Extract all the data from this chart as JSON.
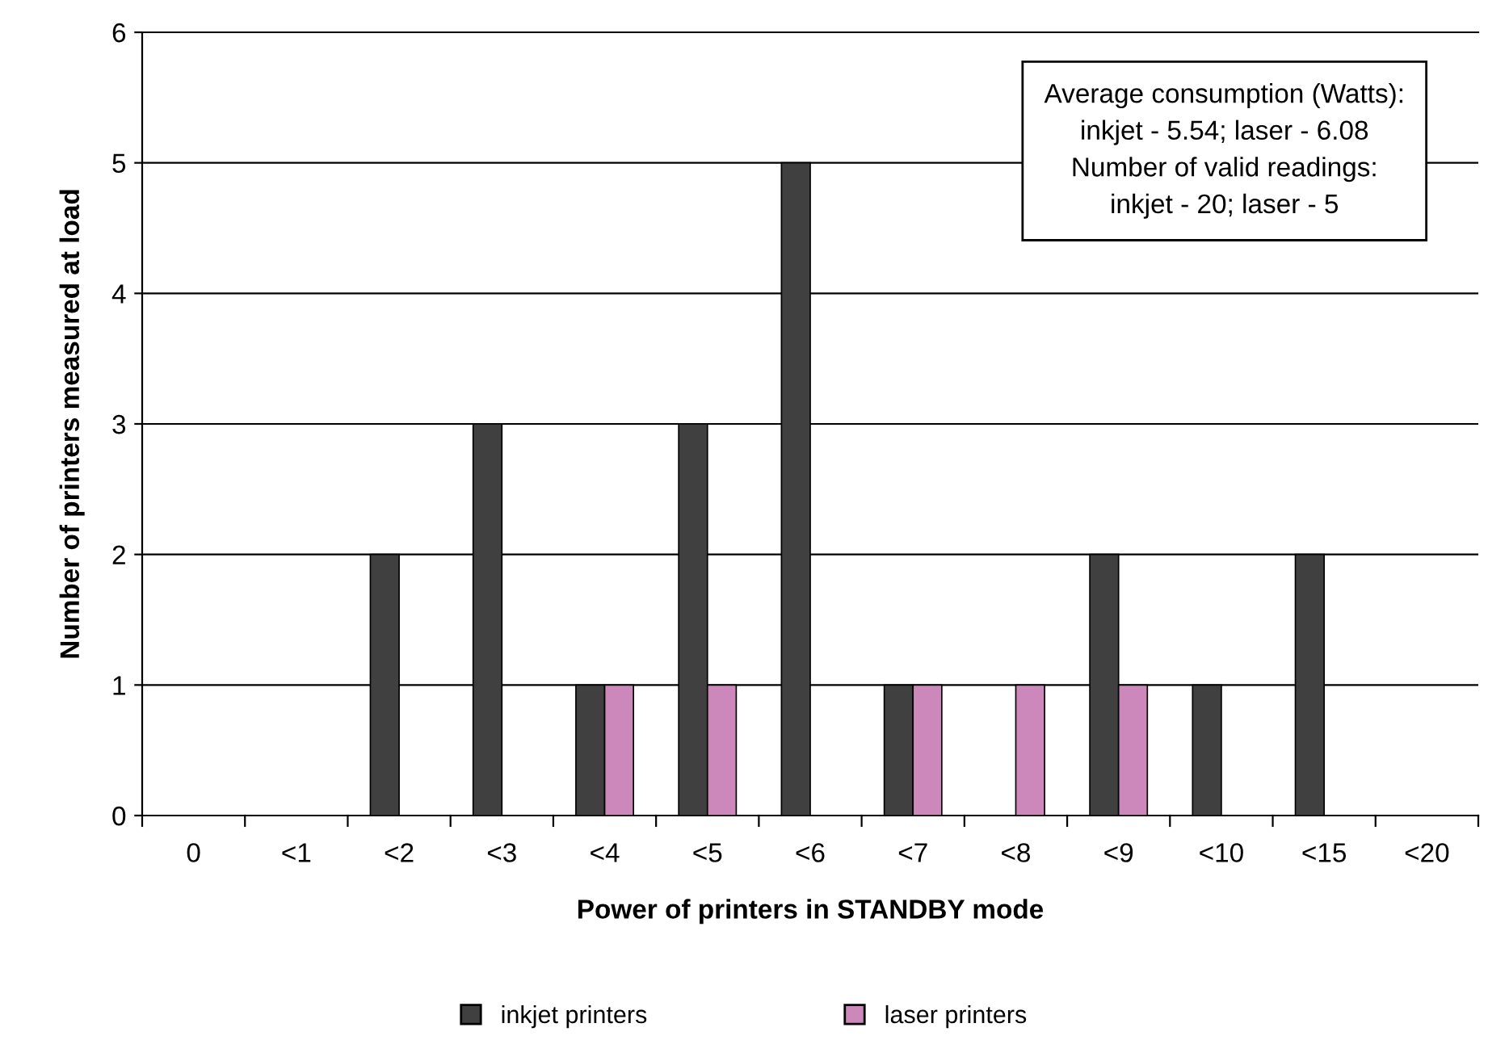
{
  "chart_data": {
    "type": "bar",
    "xlabel": "Power of printers in STANDBY mode",
    "ylabel": "Number of printers measured at load",
    "categories": [
      "0",
      "<1",
      "<2",
      "<3",
      "<4",
      "<5",
      "<6",
      "<7",
      "<8",
      "<9",
      "<10",
      "<15",
      "<20"
    ],
    "series": [
      {
        "name": "inkjet printers",
        "color": "#404040",
        "values": [
          0,
          0,
          2,
          3,
          1,
          3,
          5,
          1,
          0,
          2,
          1,
          2,
          0
        ]
      },
      {
        "name": "laser printers",
        "color": "#cc88bb",
        "values": [
          0,
          0,
          0,
          0,
          1,
          1,
          0,
          1,
          1,
          1,
          0,
          0,
          0
        ]
      }
    ],
    "ylim": [
      0,
      6
    ],
    "yticks": [
      0,
      1,
      2,
      3,
      4,
      5,
      6
    ],
    "grid": "y",
    "legend": "bottom",
    "annotations": [
      "Average consumption (Watts):\ninkjet - 5.54; laser - 6.08\nNumber of valid readings:\ninkjet - 20; laser - 5"
    ]
  }
}
